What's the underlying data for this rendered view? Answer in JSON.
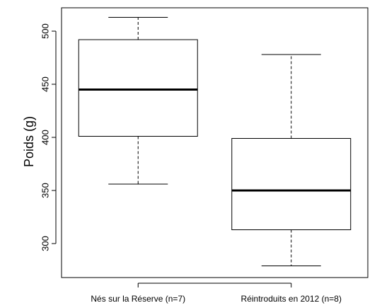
{
  "chart_data": {
    "type": "box",
    "title": "",
    "xlabel": "",
    "ylabel": "Poids (g)",
    "ylim": [
      268,
      522
    ],
    "yticks": [
      300,
      350,
      400,
      450,
      500
    ],
    "grid": false,
    "categories": [
      "Nés sur la Réserve (n=7)",
      "Réintroduits en 2012 (n=8)"
    ],
    "boxes": [
      {
        "category": "Nés sur la Réserve (n=7)",
        "min": 356,
        "q1": 401,
        "median": 445,
        "q3": 492,
        "max": 513
      },
      {
        "category": "Réintroduits en 2012 (n=8)",
        "min": 279,
        "q1": 313,
        "median": 350,
        "q3": 399,
        "max": 478
      }
    ]
  }
}
